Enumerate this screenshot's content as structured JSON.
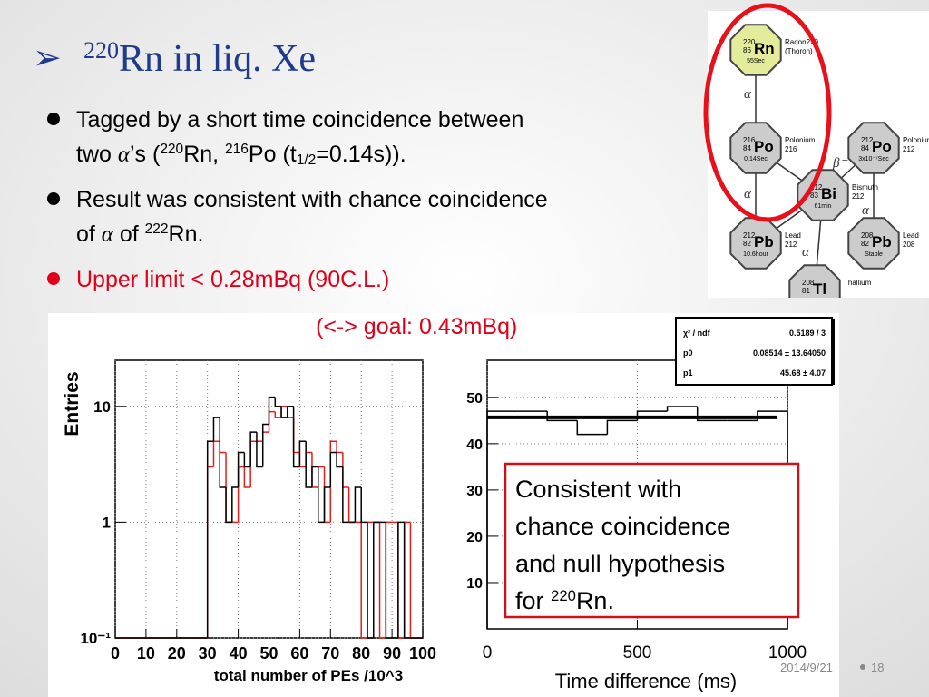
{
  "slide": {
    "title": [
      {
        "text": "220",
        "style": "sup"
      },
      {
        "text": "Rn in liq. Xe"
      }
    ],
    "title_marker": "➢",
    "bullets": [
      {
        "color": "#000000",
        "lines": [
          [
            {
              "text": "Tagged by a short time coincidence between"
            }
          ],
          [
            {
              "text": "two "
            },
            {
              "text": "α",
              "style": "sym"
            },
            {
              "text": "’s ("
            },
            {
              "text": "220",
              "style": "sup"
            },
            {
              "text": "Rn, "
            },
            {
              "text": "216",
              "style": "sup"
            },
            {
              "text": "Po (t"
            },
            {
              "text": "1/2",
              "style": "sub"
            },
            {
              "text": "=0.14s))."
            }
          ]
        ]
      },
      {
        "color": "#000000",
        "lines": [
          [
            {
              "text": "Result was consistent with chance coincidence"
            }
          ],
          [
            {
              "text": "of "
            },
            {
              "text": "α",
              "style": "sym"
            },
            {
              "text": " of "
            },
            {
              "text": "222",
              "style": "sup"
            },
            {
              "text": "Rn."
            }
          ]
        ]
      },
      {
        "color": "#e0001b",
        "lines": [
          [
            {
              "text": "Upper limit < 0.28mBq (90C.L.)"
            }
          ]
        ]
      }
    ],
    "goal": "(<-> goal: 0.43mBq)",
    "callout": [
      [
        {
          "text": "Consistent with"
        }
      ],
      [
        {
          "text": "chance coincidence"
        }
      ],
      [
        {
          "text": "and null hypothesis"
        }
      ],
      [
        {
          "text": "for "
        },
        {
          "text": "220",
          "style": "sup"
        },
        {
          "text": "Rn."
        }
      ]
    ],
    "fit_box": [
      [
        "χ² / ndf",
        "0.5189 / 3"
      ],
      [
        "p0",
        "0.08514 ± 13.64050"
      ],
      [
        "p1",
        "45.68 ± 4.07"
      ]
    ],
    "footer_date": "2014/9/21",
    "footer_page": "18"
  },
  "decay_chain": {
    "nodes": [
      {
        "A": "220",
        "Z": "86",
        "sym": "Rn",
        "life": "55Sec",
        "name": [
          "Radon220",
          "(Thoron)"
        ],
        "color": "#e4ec9c"
      },
      {
        "A": "216",
        "Z": "84",
        "sym": "Po",
        "life": "0.14Sec",
        "name": [
          "Polonium",
          "216"
        ],
        "color": "#cccccc"
      },
      {
        "A": "212",
        "Z": "84",
        "sym": "Po",
        "life": "3x10⁻⁷Sec",
        "name": [
          "Polonium",
          "212"
        ],
        "color": "#cccccc"
      },
      {
        "A": "212",
        "Z": "83",
        "sym": "Bi",
        "life": "61min",
        "name": [
          "Bismuth",
          "212"
        ],
        "color": "#cccccc"
      },
      {
        "A": "212",
        "Z": "82",
        "sym": "Pb",
        "life": "10.6hour",
        "name": [
          "Lead",
          "212"
        ],
        "color": "#cccccc"
      },
      {
        "A": "208",
        "Z": "82",
        "sym": "Pb",
        "life": "Stable",
        "name": [
          "Lead",
          "208"
        ],
        "color": "#cccccc"
      },
      {
        "A": "208",
        "Z": "81",
        "sym": "Tl",
        "life": "",
        "name": [
          "Thallium"
        ],
        "color": "#cccccc"
      }
    ],
    "decay_labels": [
      "α",
      "α",
      "β⁻",
      "α",
      "α"
    ]
  },
  "chart_data": [
    {
      "type": "histogram",
      "y_label": "Entries",
      "x_label": "total number of PEs /10^3",
      "bins": [
        0,
        2,
        4,
        6,
        8,
        10,
        12,
        14,
        16,
        18,
        20,
        22,
        24,
        26,
        28,
        30,
        32,
        34,
        36,
        38,
        40,
        42,
        44,
        46,
        48,
        50,
        52,
        54,
        56,
        58,
        60,
        62,
        64,
        66,
        68,
        70,
        72,
        74,
        76,
        78,
        80,
        82,
        84,
        86,
        88,
        90,
        92,
        94,
        96,
        98,
        100
      ],
      "series": [
        {
          "color": "#e0201b",
          "values": [
            0,
            0,
            0,
            0,
            0,
            0,
            0,
            0,
            0,
            0,
            0,
            0,
            0,
            0,
            0,
            3,
            5,
            4,
            1,
            1,
            3,
            2,
            5,
            5,
            6,
            9,
            8,
            10,
            8,
            4,
            3,
            4,
            2,
            3,
            1,
            5,
            4,
            2,
            1,
            1,
            0,
            1,
            1,
            0,
            1,
            1,
            0,
            1,
            0,
            0
          ]
        },
        {
          "color": "#000000",
          "values": [
            0,
            0,
            0,
            0,
            0,
            0,
            0,
            0,
            0,
            0,
            0,
            0,
            0,
            0,
            0,
            5,
            8,
            2,
            1,
            2,
            4,
            3,
            6,
            3,
            7,
            12,
            10,
            8,
            10,
            3,
            5,
            2,
            3,
            1,
            2,
            4,
            3,
            1,
            1,
            2,
            1,
            0,
            1,
            1,
            0,
            0,
            1,
            0,
            0,
            0
          ]
        }
      ],
      "log_y": true,
      "grid": true,
      "xlim": [
        0,
        100
      ],
      "xticks": [
        0,
        10,
        20,
        30,
        40,
        50,
        60,
        70,
        80,
        90,
        100
      ],
      "ylim": [
        0.1,
        25
      ],
      "yticks": [
        {
          "value": 0.1,
          "label": "10⁻¹"
        },
        1,
        10
      ]
    },
    {
      "type": "histogram",
      "x_label": "Time difference (ms)",
      "bins": [
        0,
        100,
        200,
        300,
        400,
        500,
        600,
        700,
        800,
        900,
        1000
      ],
      "series": [
        {
          "color": "#000000",
          "values": [
            47,
            47,
            45,
            42,
            45,
            47,
            48,
            45,
            45,
            47
          ]
        }
      ],
      "fit": 45.68,
      "grid": true,
      "xlim": [
        0,
        1000
      ],
      "xticks": [
        0,
        500,
        1000
      ],
      "ylim": [
        0,
        58
      ],
      "yticks": [
        10,
        20,
        30,
        40,
        50
      ]
    }
  ]
}
